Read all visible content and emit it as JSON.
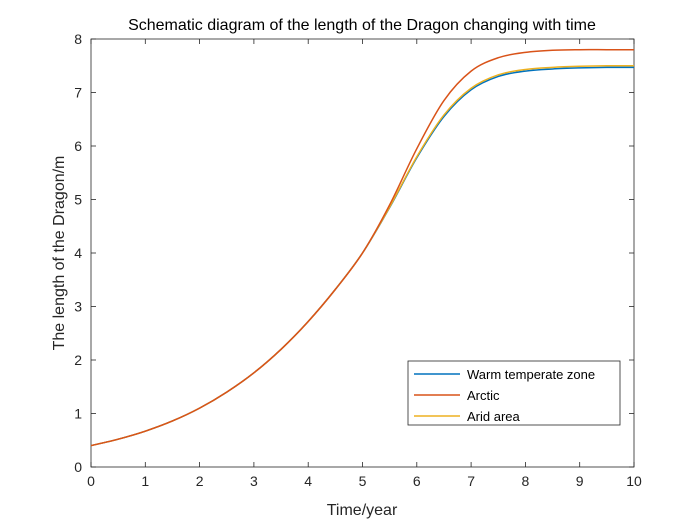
{
  "chart_data": {
    "type": "line",
    "title": "Schematic diagram of the length of the Dragon changing with time",
    "xlabel": "Time/year",
    "ylabel": "The length of the Dragon/m",
    "xlim": [
      0,
      10
    ],
    "ylim": [
      0,
      8
    ],
    "xticks": [
      "0",
      "1",
      "2",
      "3",
      "4",
      "5",
      "6",
      "7",
      "8",
      "9",
      "10"
    ],
    "yticks": [
      "0",
      "1",
      "2",
      "3",
      "4",
      "5",
      "6",
      "7",
      "8"
    ],
    "grid": false,
    "legend_position": "bottom-right",
    "x": [
      0,
      0.5,
      1,
      1.5,
      2,
      2.5,
      3,
      3.5,
      4,
      4.5,
      5,
      5.5,
      6,
      6.5,
      7,
      7.5,
      8,
      8.5,
      9,
      9.5,
      10
    ],
    "series": [
      {
        "name": "Warm temperate zone",
        "color": "#0072BD",
        "values": [
          0.4,
          0.52,
          0.67,
          0.86,
          1.1,
          1.4,
          1.76,
          2.2,
          2.72,
          3.32,
          4.0,
          4.85,
          5.78,
          6.55,
          7.05,
          7.3,
          7.4,
          7.44,
          7.46,
          7.47,
          7.47
        ]
      },
      {
        "name": "Arctic",
        "color": "#D95319",
        "values": [
          0.4,
          0.52,
          0.67,
          0.86,
          1.1,
          1.4,
          1.76,
          2.2,
          2.72,
          3.32,
          4.0,
          4.9,
          5.95,
          6.85,
          7.4,
          7.65,
          7.75,
          7.79,
          7.8,
          7.8,
          7.8
        ]
      },
      {
        "name": "Arid area",
        "color": "#EDB120",
        "values": [
          0.4,
          0.52,
          0.67,
          0.86,
          1.1,
          1.4,
          1.76,
          2.2,
          2.72,
          3.32,
          4.0,
          4.86,
          5.8,
          6.58,
          7.08,
          7.33,
          7.43,
          7.47,
          7.49,
          7.5,
          7.5
        ]
      }
    ]
  }
}
